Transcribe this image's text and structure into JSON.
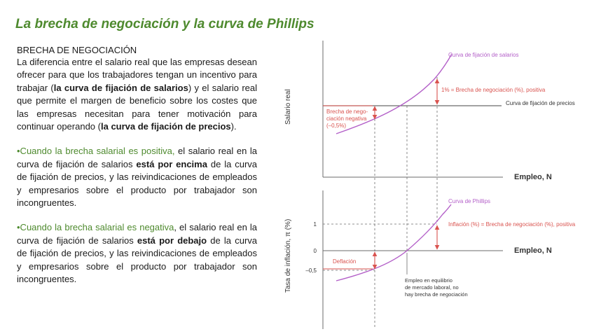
{
  "title": "La brecha de negociación y la curva de Phillips",
  "left": {
    "heading": "BRECHA DE NEGOCIACIÓN",
    "p1": {
      "t1": "La diferencia entre el salario real que las empresas desean ofrecer para que los trabajadores tengan un incentivo para trabajar (",
      "b1": "la curva de fijación de salarios",
      "t2": ") y el salario real que permite el margen de beneficio sobre los costes que las empresas necesitan para tener motivación para continuar operando (",
      "b2": "la curva de fijación de precios",
      "t3": ")."
    },
    "p2": {
      "g": "•Cuando la brecha salarial es positiva,",
      "t1": " el salario real en la curva de fijación de salarios ",
      "b1": "está por encima",
      "t2": " de la curva de fijación de precios, y las reivindicaciones de empleados y empresarios sobre el producto por trabajador son incongruentes."
    },
    "p3": {
      "g": "•Cuando la brecha salarial es negativa",
      "t1": ", el salario real en la curva de fijación de salarios ",
      "b1": "está por debajo",
      "t2": " de la curva de fijación de precios, y las reivindicaciones de empleados y empresarios sobre el producto por trabajador son incongruentes."
    }
  },
  "top_chart": {
    "ylabel": "Salario real",
    "xlabel": "Empleo, N",
    "wage_curve_label": "Curva de fijación de salarios",
    "price_curve_label": "Curva de fijación de precios",
    "positive_gap_label": "1% = Brecha de negociación (%), positiva",
    "negative_gap_label": [
      "Brecha de nego-",
      "ciación negativa",
      "(–0,5%)"
    ]
  },
  "bottom_chart": {
    "ylabel": "Tasa de inflación, π (%)",
    "xlabel": "Empleo, N",
    "phillips_label": "Curva de Phillips",
    "inflation_label": "Inflación (%) = Brecha de negociación (%), positiva",
    "deflation_label": "Deflación",
    "ticks": [
      "1",
      "0",
      "–0,5"
    ],
    "equilibrium_label": [
      "Empleo en equilibrio",
      "de mercado laboral, no",
      "hay brecha de negociación"
    ]
  },
  "colors": {
    "title_green": "#4e8a2e",
    "curve_purple": "#b35fc8",
    "arrow_red": "#d9534f",
    "axis_gray": "#6b6b6b"
  }
}
